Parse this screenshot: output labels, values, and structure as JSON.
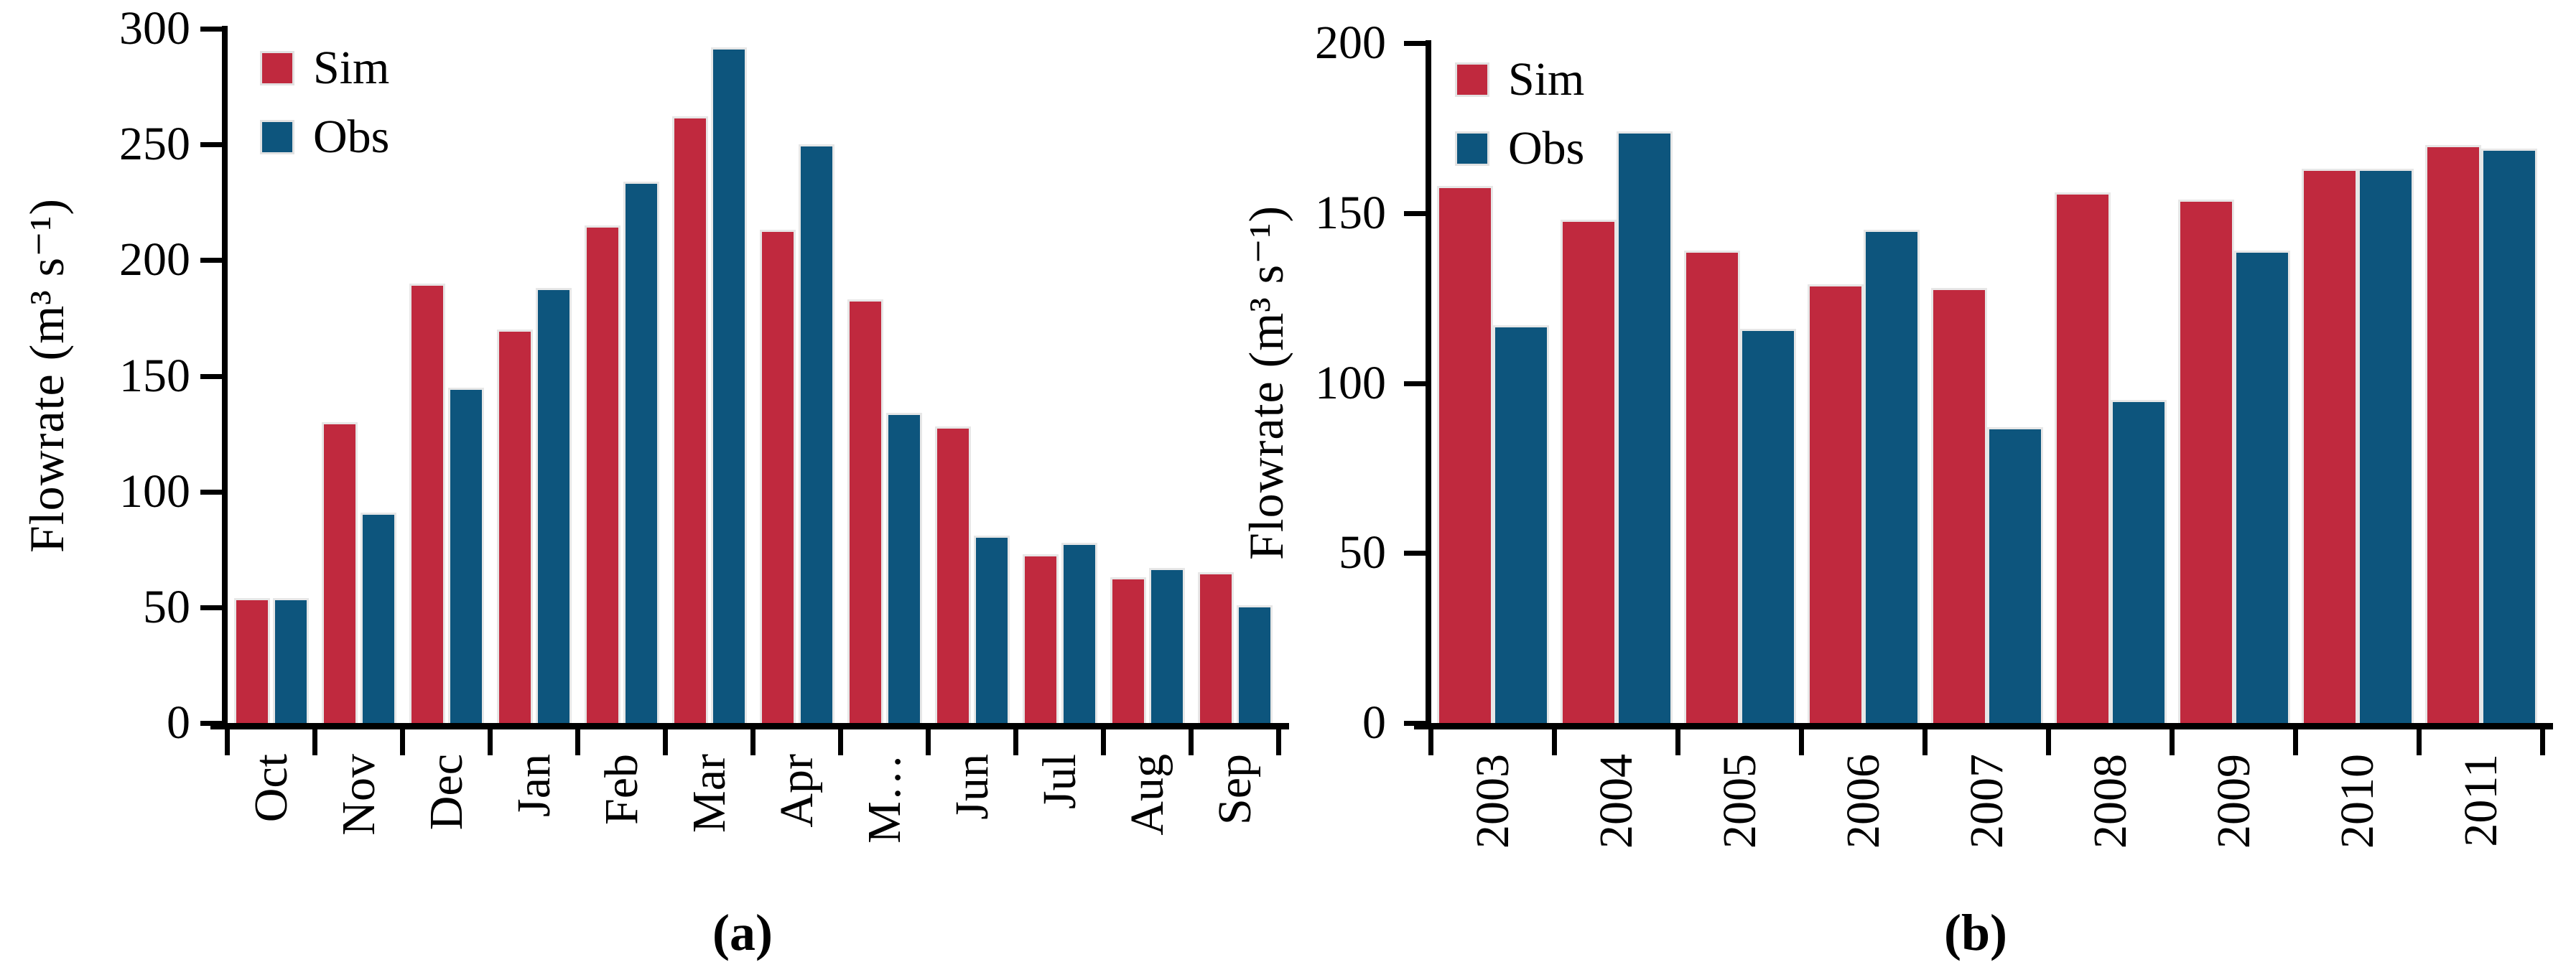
{
  "page": {
    "background": "#FFFFFF"
  },
  "colors": {
    "sim_red": "#C0293E",
    "obs_blue": "#0D557D",
    "bar_border": "#E7E7E7",
    "axis_black": "#000000"
  },
  "chart_data": [
    {
      "id": "a",
      "type": "bar",
      "caption": "(a)",
      "ylabel": "Flowrate (m³ s⁻¹)",
      "xlabel": "",
      "ylim": [
        0,
        300
      ],
      "ytick_step": 50,
      "grid": false,
      "legend_position": "upper-left-inside",
      "legend": [
        "Sim",
        "Obs"
      ],
      "categories": [
        "Oct",
        "Nov",
        "Dec",
        "Jan",
        "Feb",
        "Mar",
        "Apr",
        "M…",
        "Jun",
        "Jul",
        "Aug",
        "Sep"
      ],
      "series": [
        {
          "name": "Sim",
          "color": "#C0293E",
          "values": [
            54,
            130,
            190,
            170,
            215,
            262,
            213,
            183,
            128,
            73,
            63,
            65
          ]
        },
        {
          "name": "Obs",
          "color": "#0D557D",
          "values": [
            54,
            91,
            145,
            188,
            234,
            292,
            250,
            134,
            81,
            78,
            67,
            51
          ]
        }
      ]
    },
    {
      "id": "b",
      "type": "bar",
      "caption": "(b)",
      "ylabel": "Flowrate (m³ s⁻¹)",
      "xlabel": "",
      "ylim": [
        0,
        200
      ],
      "ytick_step": 50,
      "grid": false,
      "legend_position": "upper-left-inside",
      "legend": [
        "Sim",
        "Obs"
      ],
      "categories": [
        "2003",
        "2004",
        "2005",
        "2006",
        "2007",
        "2008",
        "2009",
        "2010",
        "2011"
      ],
      "series": [
        {
          "name": "Sim",
          "color": "#C0293E",
          "values": [
            158,
            148,
            139,
            129,
            128,
            156,
            154,
            163,
            170
          ]
        },
        {
          "name": "Obs",
          "color": "#0D557D",
          "values": [
            117,
            174,
            116,
            145,
            87,
            95,
            139,
            163,
            169
          ]
        }
      ]
    }
  ]
}
